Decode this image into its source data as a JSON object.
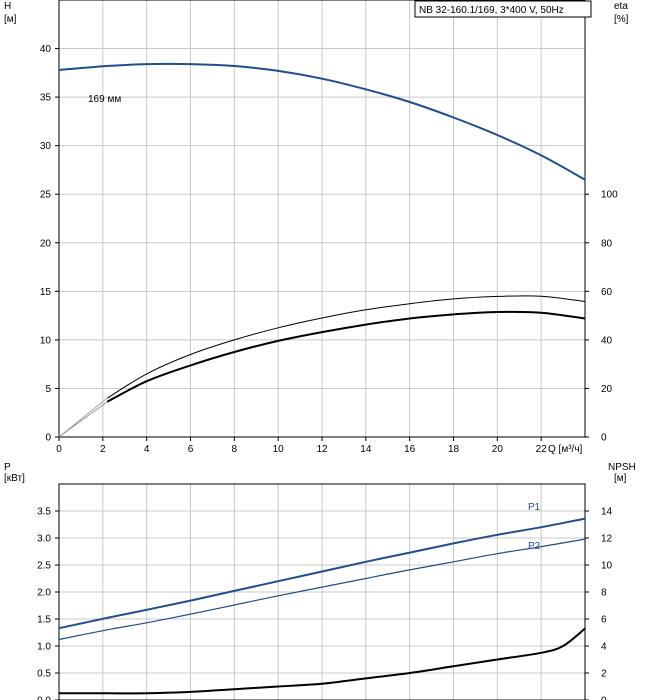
{
  "chart_data": [
    {
      "type": "line",
      "title": "NB 32-160.1/169, 3*400 V, 50Hz",
      "xlabel": "Q [м³/ч]",
      "xlim": [
        0,
        24
      ],
      "x_ticks": [
        "0",
        "2",
        "4",
        "6",
        "8",
        "10",
        "12",
        "14",
        "16",
        "18",
        "20",
        "22"
      ],
      "left_axis": {
        "label_line1": "H",
        "label_line2": "[м]",
        "ylim": [
          0,
          45
        ],
        "ticks": [
          "0",
          "5",
          "10",
          "15",
          "20",
          "25",
          "30",
          "35",
          "40"
        ]
      },
      "right_axis": {
        "label_line1": "eta",
        "label_line2": "[%]",
        "ylim": [
          0,
          180
        ],
        "ticks": [
          "0",
          "20",
          "40",
          "60",
          "80",
          "100"
        ]
      },
      "grid": true,
      "series": [
        {
          "name": "169 мм",
          "axis": "left",
          "color": "#1f4e8c",
          "points": [
            [
              0,
              37.8
            ],
            [
              2.2,
              38.2
            ],
            [
              4,
              38.4
            ],
            [
              6,
              38.4
            ],
            [
              8,
              38.2
            ],
            [
              10,
              37.7
            ],
            [
              12,
              36.9
            ],
            [
              14,
              35.8
            ],
            [
              16,
              34.5
            ],
            [
              18,
              32.9
            ],
            [
              20,
              31.1
            ],
            [
              22,
              29.0
            ],
            [
              24,
              26.5
            ]
          ]
        },
        {
          "axis": "right",
          "color": "#000000",
          "width": 1,
          "points": [
            [
              2.2,
              16
            ],
            [
              4,
              26
            ],
            [
              6,
              34
            ],
            [
              8,
              40
            ],
            [
              10,
              45
            ],
            [
              12,
              49
            ],
            [
              14,
              52.4
            ],
            [
              16,
              54.9
            ],
            [
              18,
              56.9
            ],
            [
              20,
              57.9
            ],
            [
              22,
              58.0
            ],
            [
              24,
              55.8
            ]
          ]
        },
        {
          "axis": "right",
          "color": "#000000",
          "width": 2,
          "points": [
            [
              2.2,
              14.5
            ],
            [
              4,
              23
            ],
            [
              6,
              29.5
            ],
            [
              8,
              35
            ],
            [
              10,
              39.6
            ],
            [
              12,
              43.2
            ],
            [
              14,
              46.3
            ],
            [
              16,
              48.8
            ],
            [
              18,
              50.5
            ],
            [
              20,
              51.5
            ],
            [
              22,
              51.2
            ],
            [
              24,
              48.8
            ]
          ]
        }
      ]
    },
    {
      "type": "line",
      "xlim": [
        0,
        24
      ],
      "left_axis": {
        "label_line1": "P",
        "label_line2": "[кВт]",
        "ylim": [
          0,
          4
        ],
        "ticks": [
          "0.0",
          "0.5",
          "1.0",
          "1.5",
          "2.0",
          "2.5",
          "3.0",
          "3.5"
        ]
      },
      "right_axis": {
        "label_line1": "NPSH",
        "label_line2": "[м]",
        "ylim": [
          0,
          16
        ],
        "ticks": [
          "0",
          "2",
          "4",
          "6",
          "8",
          "10",
          "12",
          "14"
        ]
      },
      "grid": true,
      "series": [
        {
          "name": "P1",
          "axis": "left",
          "color": "#1f4e8c",
          "width": 2,
          "points": [
            [
              0,
              1.33
            ],
            [
              2.2,
              1.52
            ],
            [
              4,
              1.67
            ],
            [
              6,
              1.84
            ],
            [
              8,
              2.02
            ],
            [
              10,
              2.2
            ],
            [
              12,
              2.38
            ],
            [
              14,
              2.56
            ],
            [
              16,
              2.73
            ],
            [
              18,
              2.9
            ],
            [
              20,
              3.06
            ],
            [
              22,
              3.2
            ],
            [
              24,
              3.36
            ]
          ]
        },
        {
          "name": "P2",
          "axis": "left",
          "color": "#1f4e8c",
          "width": 1.2,
          "points": [
            [
              0,
              1.12
            ],
            [
              2.2,
              1.3
            ],
            [
              4,
              1.43
            ],
            [
              6,
              1.59
            ],
            [
              8,
              1.76
            ],
            [
              10,
              1.93
            ],
            [
              12,
              2.09
            ],
            [
              14,
              2.25
            ],
            [
              16,
              2.41
            ],
            [
              18,
              2.56
            ],
            [
              20,
              2.71
            ],
            [
              22,
              2.84
            ],
            [
              24,
              2.98
            ]
          ]
        },
        {
          "axis": "right",
          "color": "#000000",
          "width": 2,
          "points": [
            [
              0,
              0.5
            ],
            [
              2.2,
              0.5
            ],
            [
              4,
              0.5
            ],
            [
              6,
              0.6
            ],
            [
              8,
              0.8
            ],
            [
              10,
              1.0
            ],
            [
              12,
              1.2
            ],
            [
              14,
              1.6
            ],
            [
              16,
              2.0
            ],
            [
              18,
              2.5
            ],
            [
              20,
              3.0
            ],
            [
              22,
              3.5
            ],
            [
              23,
              4.0
            ],
            [
              24,
              5.3
            ]
          ]
        }
      ]
    }
  ]
}
